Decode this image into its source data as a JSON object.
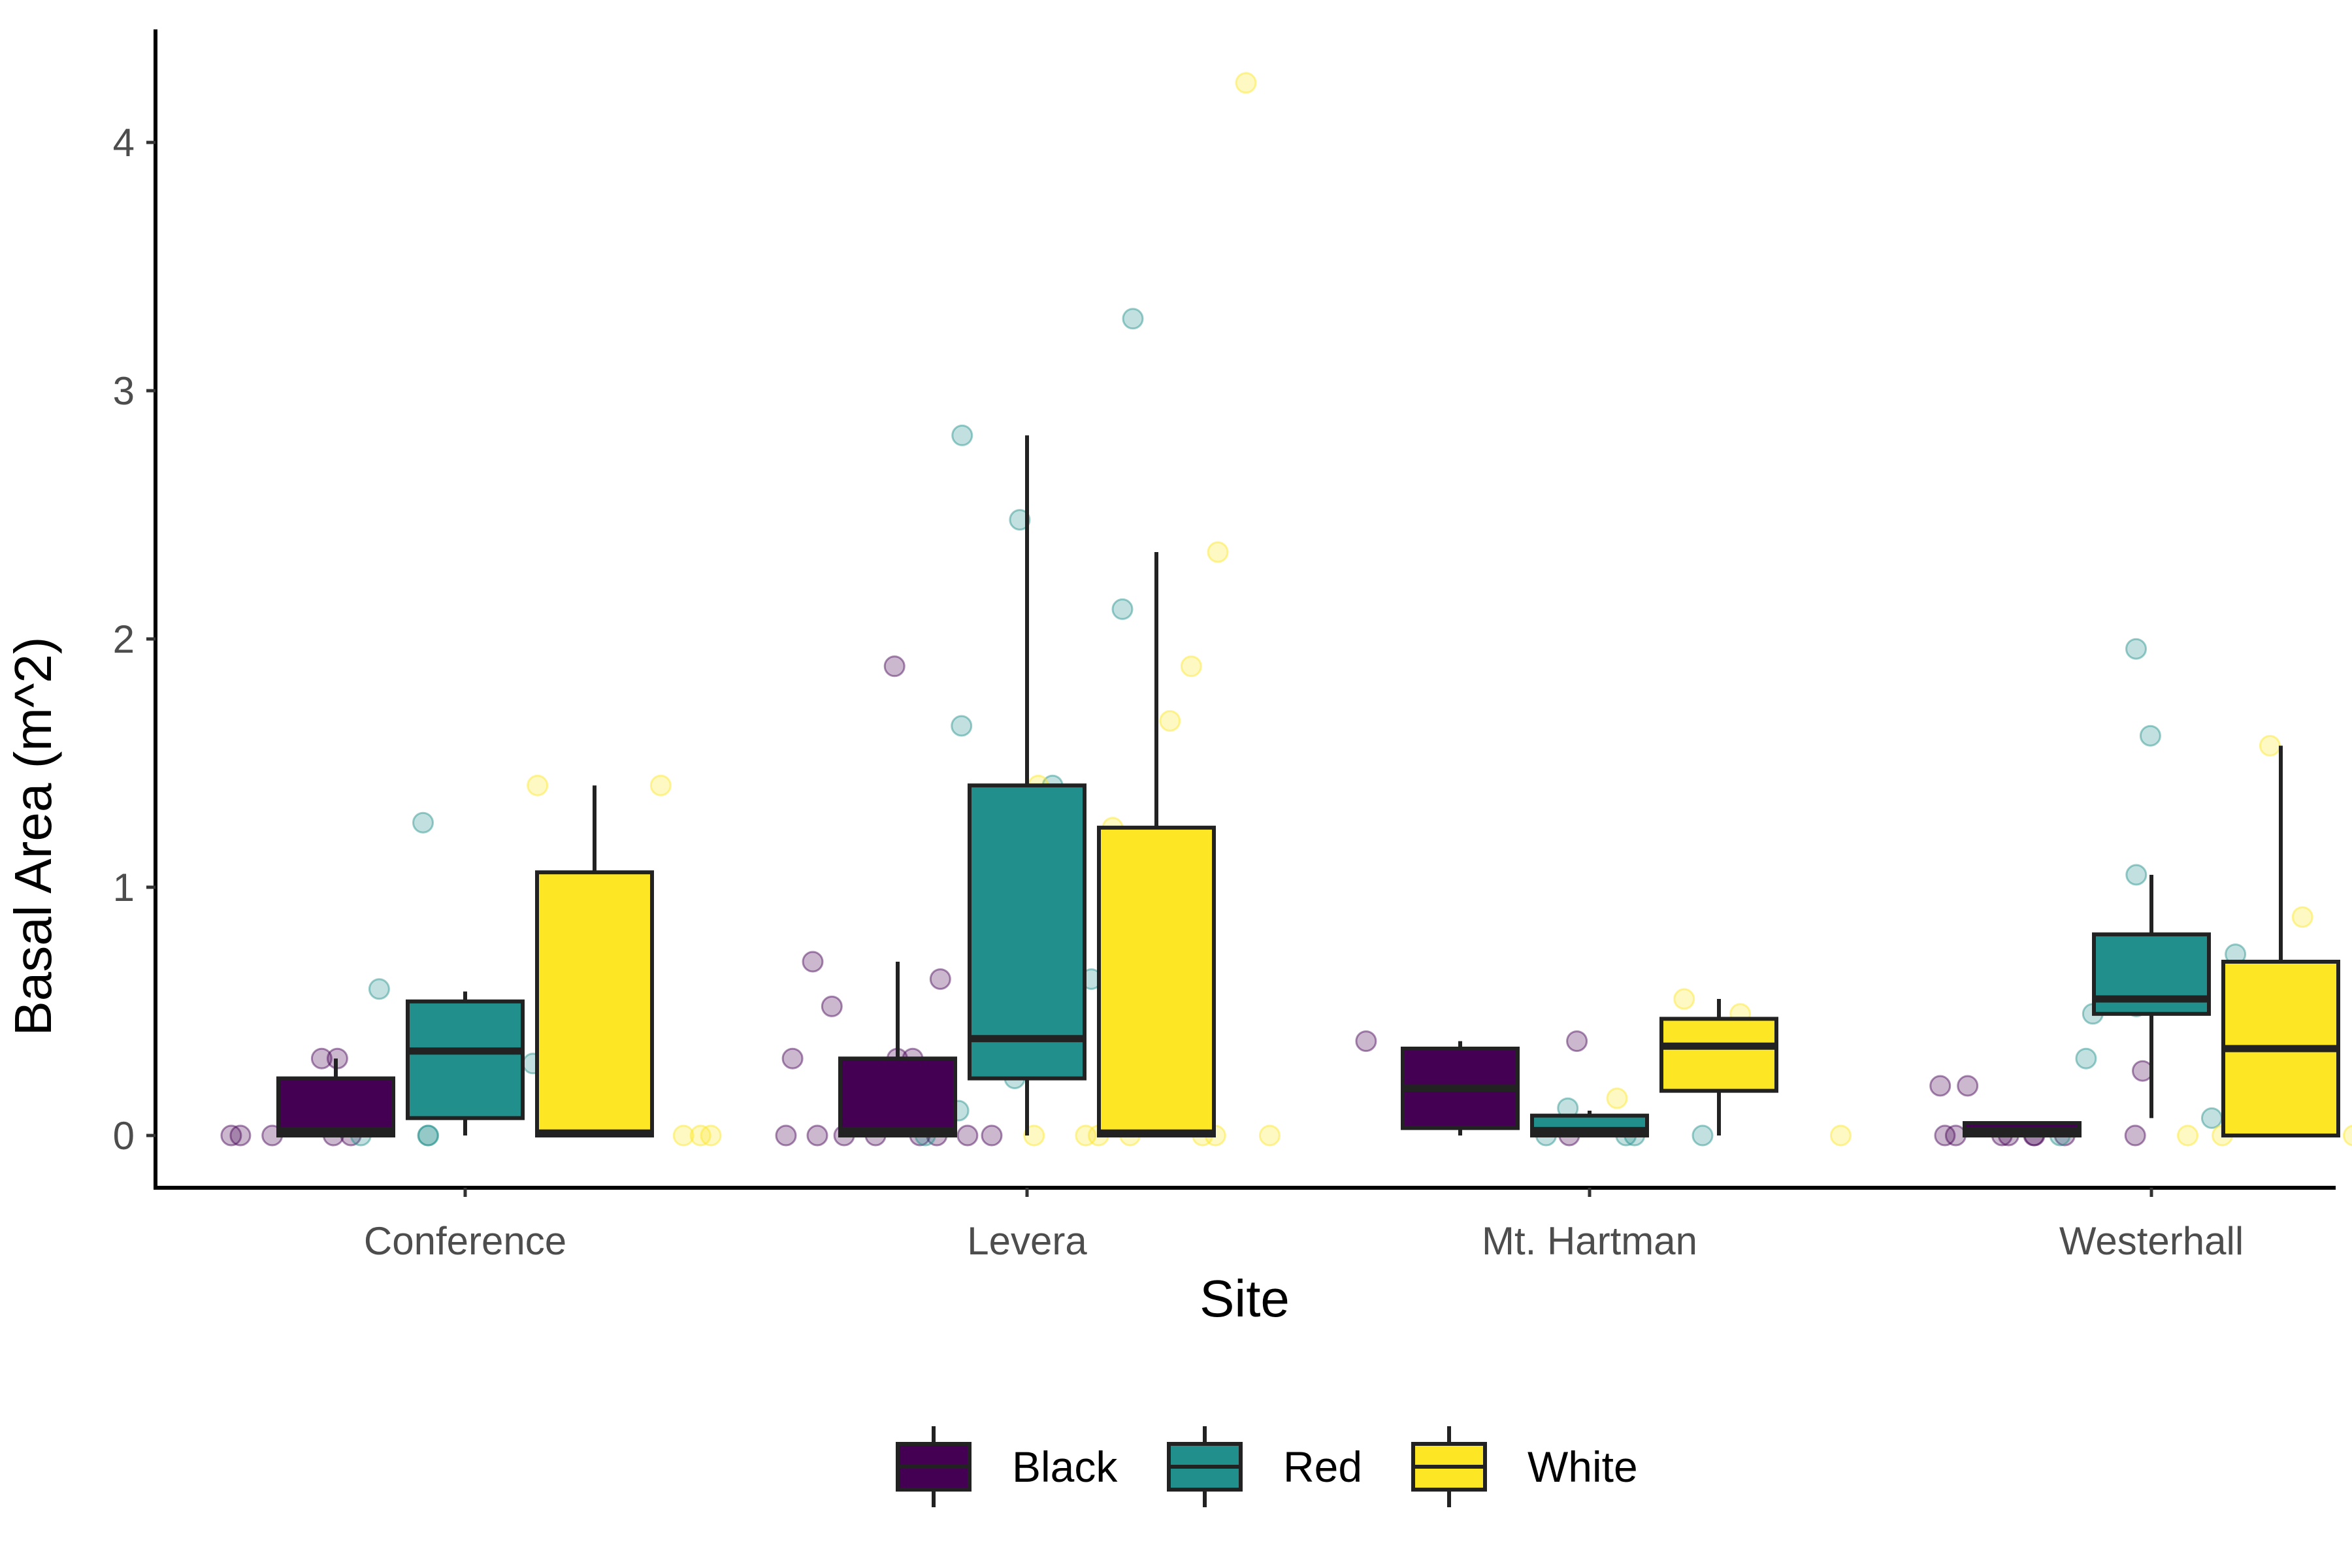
{
  "chart_data": {
    "type": "boxplot",
    "title": "",
    "xlabel": "Site",
    "ylabel": "Basal Area (m^2)",
    "ylim": [
      -0.2,
      4.45
    ],
    "yticks": [
      0,
      1,
      2,
      3,
      4
    ],
    "categories": [
      "Conference",
      "Levera",
      "Mt. Hartman",
      "Westerhall"
    ],
    "legend_position": "bottom",
    "series": [
      {
        "name": "Black",
        "color": "#440154",
        "boxes": [
          {
            "whisker_low": 0.0,
            "q1": 0.0,
            "median": 0.02,
            "q3": 0.23,
            "whisker_high": 0.31
          },
          {
            "whisker_low": 0.0,
            "q1": 0.0,
            "median": 0.02,
            "q3": 0.31,
            "whisker_high": 0.7
          },
          {
            "whisker_low": 0.0,
            "q1": 0.03,
            "median": 0.19,
            "q3": 0.35,
            "whisker_high": 0.38
          },
          {
            "whisker_low": 0.0,
            "q1": 0.0,
            "median": 0.02,
            "q3": 0.05,
            "whisker_high": 0.05
          }
        ],
        "points": [
          [
            0.0,
            0.0,
            0.0,
            0.0,
            0.31,
            0.31,
            0.0
          ],
          [
            0.0,
            0.0,
            0.0,
            0.0,
            0.0,
            0.0,
            0.31,
            0.31,
            0.52,
            0.63,
            0.7,
            0.31,
            1.89,
            0.0,
            0.0
          ],
          [
            0.0,
            0.38,
            0.38,
            0.25
          ],
          [
            0.0,
            0.0,
            0.0,
            0.0,
            0.0,
            0.2,
            0.2,
            0.26,
            0.0,
            0.0,
            0.0
          ]
        ]
      },
      {
        "name": "Red",
        "color": "#21908C",
        "boxes": [
          {
            "whisker_low": 0.0,
            "q1": 0.07,
            "median": 0.34,
            "q3": 0.54,
            "whisker_high": 0.58
          },
          {
            "whisker_low": 0.0,
            "q1": 0.23,
            "median": 0.39,
            "q3": 1.41,
            "whisker_high": 2.82
          },
          {
            "whisker_low": 0.0,
            "q1": 0.0,
            "median": 0.02,
            "q3": 0.08,
            "whisker_high": 0.1
          },
          {
            "whisker_low": 0.07,
            "q1": 0.49,
            "median": 0.55,
            "q3": 0.81,
            "whisker_high": 1.05
          }
        ],
        "points": [
          [
            1.26,
            0.59,
            0.29,
            0.0,
            0.0,
            0.0
          ],
          [
            3.29,
            2.82,
            2.12,
            2.48,
            1.65,
            1.41,
            0.86,
            0.63,
            0.39,
            0.25,
            0.1,
            0.23,
            0.0
          ],
          [
            0.21,
            0.11,
            0.0,
            0.0,
            0.0,
            0.0
          ],
          [
            1.96,
            1.61,
            1.05,
            0.73,
            0.6,
            0.52,
            0.49,
            0.31,
            0.07,
            0.0
          ]
        ]
      },
      {
        "name": "White",
        "color": "#FDE725",
        "boxes": [
          {
            "whisker_low": 0.0,
            "q1": 0.0,
            "median": 0.01,
            "q3": 1.06,
            "whisker_high": 1.41
          },
          {
            "whisker_low": 0.0,
            "q1": 0.0,
            "median": 0.01,
            "q3": 1.24,
            "whisker_high": 2.35
          },
          {
            "whisker_low": 0.0,
            "q1": 0.18,
            "median": 0.36,
            "q3": 0.47,
            "whisker_high": 0.55
          },
          {
            "whisker_low": 0.0,
            "q1": 0.0,
            "median": 0.35,
            "q3": 0.7,
            "whisker_high": 1.57
          }
        ],
        "points": [
          [
            1.41,
            1.41,
            0.0,
            0.0,
            0.0
          ],
          [
            4.24,
            2.35,
            1.89,
            1.67,
            1.41,
            1.24,
            0.55,
            0.0,
            0.0,
            0.0,
            0.0,
            0.0,
            0.0,
            0.0
          ],
          [
            0.55,
            0.49,
            0.3,
            0.15,
            0.0
          ],
          [
            1.57,
            1.5,
            0.88,
            0.28,
            0.0,
            0.0,
            0.0,
            0.0
          ]
        ]
      }
    ]
  }
}
